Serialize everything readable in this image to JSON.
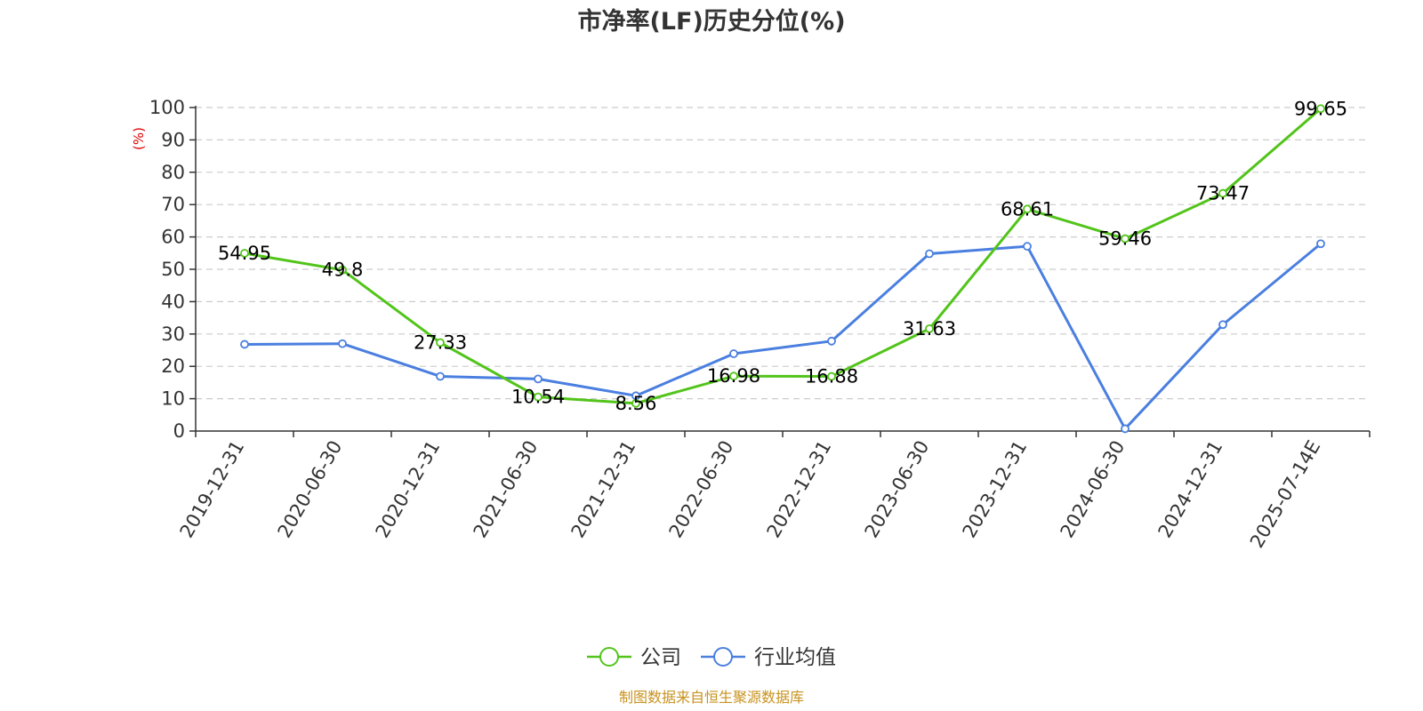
{
  "chart_data": {
    "type": "line",
    "title": "市净率(LF)历史分位(%)",
    "ylabel": "(%)",
    "categories": [
      "2019-12-31",
      "2020-06-30",
      "2020-12-31",
      "2021-06-30",
      "2021-12-31",
      "2022-06-30",
      "2022-12-31",
      "2023-06-30",
      "2023-12-31",
      "2024-06-30",
      "2024-12-31",
      "2025-07-14E"
    ],
    "ylim": [
      0,
      100
    ],
    "yticks": [
      0,
      10,
      20,
      30,
      40,
      50,
      60,
      70,
      80,
      90,
      100
    ],
    "grid": true,
    "legend_position": "bottom",
    "series": [
      {
        "name": "公司",
        "color": "#52c41a",
        "values": [
          54.95,
          49.8,
          27.33,
          10.54,
          8.56,
          16.98,
          16.88,
          31.63,
          68.61,
          59.46,
          73.47,
          99.65
        ],
        "labels": [
          "54.95",
          "49.8",
          "27.33",
          "10.54",
          "8.56",
          "16.98",
          "16.88",
          "31.63",
          "68.61",
          "59.46",
          "73.47",
          "99.65"
        ]
      },
      {
        "name": "行业均值",
        "color": "#4a7fe0",
        "values": [
          26.8,
          27.0,
          16.9,
          16.1,
          10.9,
          23.9,
          27.8,
          54.8,
          57.1,
          0.7,
          32.9,
          57.9
        ]
      }
    ]
  },
  "source": "制图数据来自恒生聚源数据库"
}
